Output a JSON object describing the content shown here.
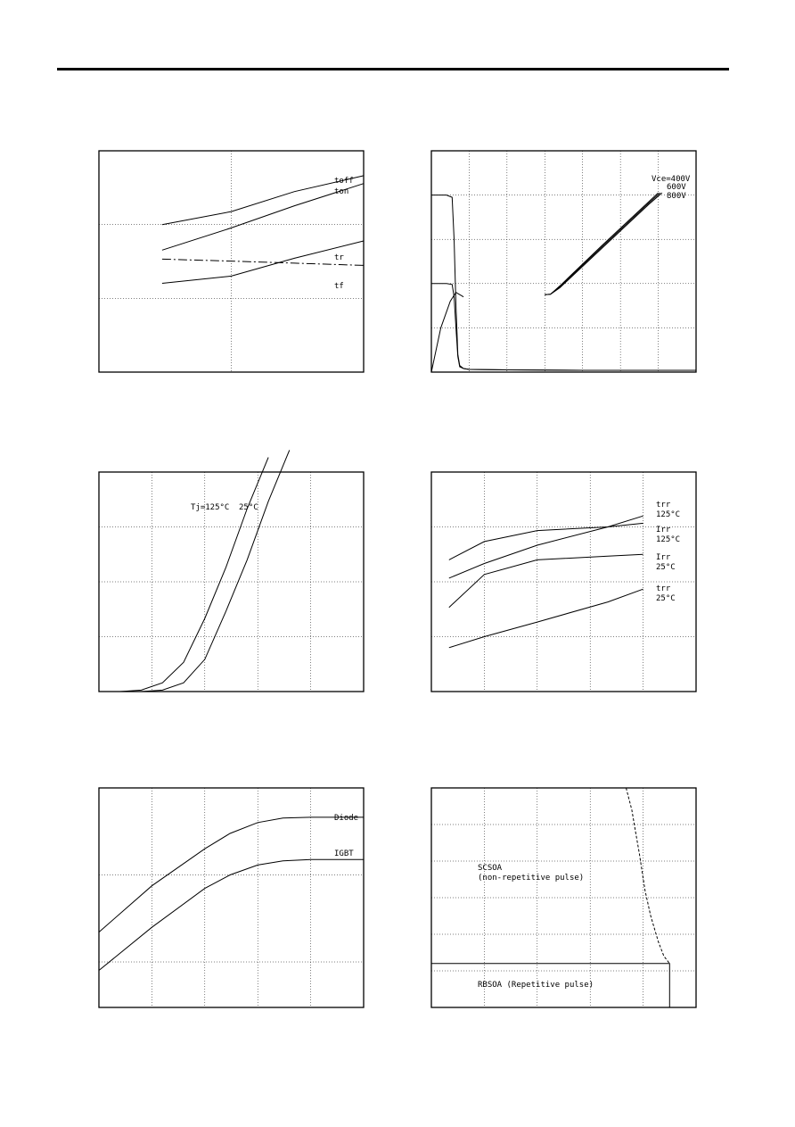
{
  "chart_data": [
    {
      "type": "line",
      "xscale": "log",
      "yscale": "log",
      "xlim": [
        1,
        100
      ],
      "ylim": [
        0.01,
        10
      ],
      "series": [
        {
          "name": "toff",
          "x": [
            3,
            10,
            30,
            100
          ],
          "y": [
            1.0,
            1.5,
            2.8,
            4.6
          ]
        },
        {
          "name": "ton",
          "x": [
            3,
            10,
            30,
            100
          ],
          "y": [
            0.45,
            0.9,
            1.8,
            3.6
          ]
        },
        {
          "name": "tr",
          "x": [
            3,
            10,
            30,
            100
          ],
          "y": [
            0.16,
            0.2,
            0.35,
            0.6
          ]
        },
        {
          "name": "tf",
          "x": [
            3,
            10,
            30,
            100
          ],
          "y": [
            0.34,
            0.32,
            0.3,
            0.28
          ]
        }
      ]
    },
    {
      "type": "line",
      "xlim": [
        0,
        140
      ],
      "ylim": [
        0,
        500
      ],
      "series": [
        {
          "name": "",
          "x": [
            0,
            8,
            11,
            12,
            13,
            14,
            15,
            17,
            20,
            40,
            80,
            120,
            140
          ],
          "y": [
            400,
            400,
            395,
            300,
            150,
            40,
            15,
            8,
            6,
            5,
            4,
            4,
            4
          ]
        },
        {
          "name": "",
          "x": [
            0,
            8,
            11,
            12,
            13,
            14,
            15,
            17,
            20,
            40,
            80,
            120,
            140
          ],
          "y": [
            200,
            200,
            198,
            170,
            100,
            35,
            12,
            8,
            6,
            5,
            4,
            4,
            4
          ]
        },
        {
          "name": "",
          "x": [
            0,
            5,
            10,
            13,
            15,
            17
          ],
          "y": [
            0,
            100,
            160,
            180,
            175,
            170
          ]
        },
        {
          "name": "Vce=400V",
          "x": [
            60,
            63,
            68,
            90,
            115,
            120
          ],
          "y": [
            175,
            176,
            195,
            285,
            385,
            405
          ]
        },
        {
          "name": "600V",
          "x": [
            60,
            63,
            68,
            90,
            115,
            121
          ],
          "y": [
            175,
            176,
            193,
            282,
            382,
            405
          ]
        },
        {
          "name": "800V",
          "x": [
            60,
            63,
            68,
            90,
            115,
            122
          ],
          "y": [
            175,
            176,
            191,
            279,
            379,
            405
          ]
        }
      ],
      "annotations": [
        "Vce=400V",
        "600V",
        "800V"
      ]
    },
    {
      "type": "line",
      "xlim": [
        0,
        5
      ],
      "ylim": [
        0,
        150
      ],
      "series": [
        {
          "name": "Tj=125°C",
          "x": [
            0.4,
            0.8,
            1.2,
            1.6,
            2.0,
            2.4,
            2.8,
            3.2
          ],
          "y": [
            0,
            1,
            6,
            20,
            50,
            85,
            125,
            160
          ]
        },
        {
          "name": "25°C",
          "x": [
            0.8,
            1.2,
            1.6,
            2.0,
            2.4,
            2.8,
            3.2,
            3.6
          ],
          "y": [
            0,
            1,
            6,
            22,
            55,
            90,
            130,
            165
          ]
        }
      ]
    },
    {
      "type": "line",
      "xlim": [
        0,
        150
      ],
      "ylim": [
        0,
        60
      ],
      "series": [
        {
          "name": "trr 125°C",
          "x": [
            10,
            30,
            60,
            100,
            120
          ],
          "y": [
            36,
            41,
            44,
            45,
            46
          ]
        },
        {
          "name": "Irr 125°C",
          "x": [
            10,
            30,
            60,
            100,
            120
          ],
          "y": [
            31,
            35,
            40,
            45,
            48
          ]
        },
        {
          "name": "Irr 25°C",
          "x": [
            10,
            30,
            60,
            100,
            120
          ],
          "y": [
            23,
            32,
            36,
            37,
            37.5
          ]
        },
        {
          "name": "trr 25°C",
          "x": [
            10,
            30,
            60,
            100,
            120
          ],
          "y": [
            12,
            15,
            19,
            24.5,
            28
          ]
        }
      ]
    },
    {
      "type": "line",
      "xscale": "log",
      "yscale": "log",
      "xlim": [
        1e-05,
        1
      ],
      "ylim": [
        0.003,
        1
      ],
      "series": [
        {
          "name": "Diode",
          "x": [
            1e-05,
            0.0001,
            0.001,
            0.003,
            0.01,
            0.03,
            0.1,
            1
          ],
          "y": [
            0.022,
            0.075,
            0.2,
            0.3,
            0.4,
            0.45,
            0.46,
            0.46
          ]
        },
        {
          "name": "IGBT",
          "x": [
            1e-05,
            0.0001,
            0.001,
            0.003,
            0.01,
            0.03,
            0.1,
            1
          ],
          "y": [
            0.008,
            0.025,
            0.07,
            0.1,
            0.13,
            0.145,
            0.15,
            0.15
          ]
        }
      ]
    },
    {
      "type": "line",
      "xlim": [
        0,
        1400
      ],
      "ylim": [
        0,
        600
      ],
      "series": [
        {
          "name": "SCSOA (non-repetitive pulse)",
          "x": [
            1030,
            1060,
            1080,
            1100,
            1130,
            1160,
            1200,
            1230,
            1260
          ],
          "y": [
            600,
            540,
            480,
            420,
            320,
            250,
            180,
            140,
            120
          ]
        },
        {
          "name": "RBSOA (Repetitive pulse)",
          "x": [
            0,
            1260,
            1260
          ],
          "y": [
            120,
            120,
            0
          ]
        }
      ],
      "annotations": [
        "SCSOA",
        "(non-repetitive pulse)",
        "RBSOA (Repetitive pulse)"
      ]
    }
  ]
}
